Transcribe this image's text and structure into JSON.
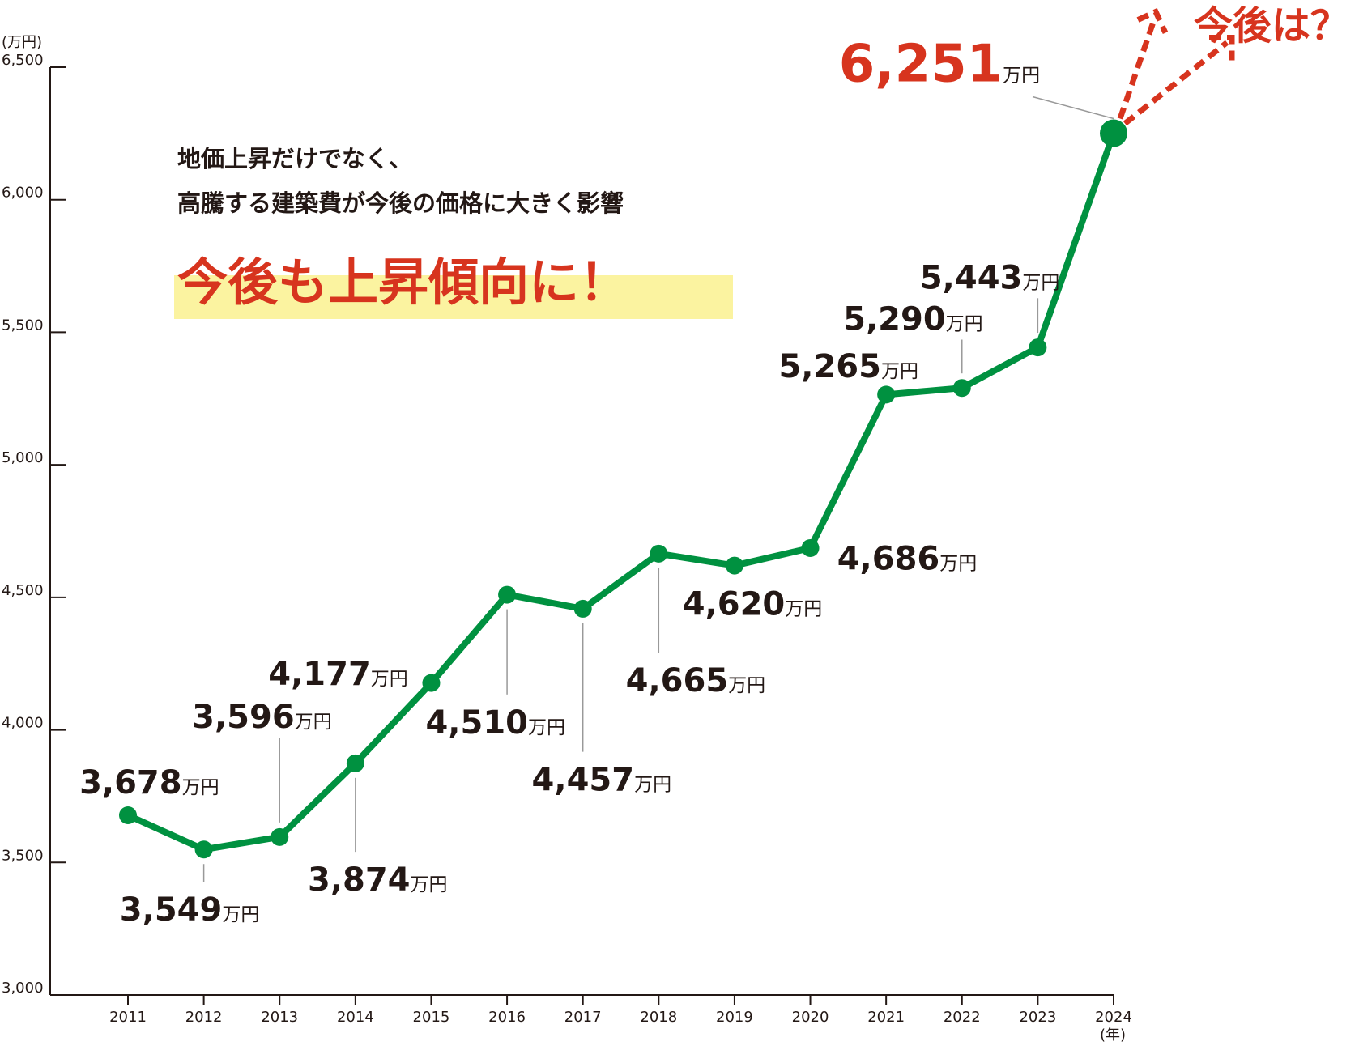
{
  "chart_data": {
    "type": "line",
    "y_label": "(万円)",
    "x_label": "(年)",
    "categories": [
      "2011",
      "2012",
      "2013",
      "2014",
      "2015",
      "2016",
      "2017",
      "2018",
      "2019",
      "2020",
      "2021",
      "2022",
      "2023",
      "2024"
    ],
    "series": [
      {
        "name": "価格",
        "color": "#009140",
        "values": [
          3678,
          3549,
          3596,
          3874,
          4177,
          4510,
          4457,
          4665,
          4620,
          4686,
          5265,
          5290,
          5443,
          6251
        ],
        "value_labels": [
          "3,678",
          "3,549",
          "3,596",
          "3,874",
          "4,177",
          "4,510",
          "4,457",
          "4,665",
          "4,620",
          "4,686",
          "5,265",
          "5,290",
          "5,443",
          "6,251"
        ]
      }
    ],
    "value_unit": "万円",
    "ylim": [
      3000,
      6500
    ],
    "yticks": [
      {
        "value": 3000,
        "label": "3,000"
      },
      {
        "value": 3500,
        "label": "3,500"
      },
      {
        "value": 4000,
        "label": "4,000"
      },
      {
        "value": 4500,
        "label": "4,500"
      },
      {
        "value": 5000,
        "label": "5,000"
      },
      {
        "value": 5500,
        "label": "5,500"
      },
      {
        "value": 6000,
        "label": "6,000"
      },
      {
        "value": 6500,
        "label": "6,500"
      }
    ],
    "annotations": [
      "地価上昇だけでなく、",
      "高騰する建築費が今後の価格に大きく影響",
      "今後も上昇傾向に！",
      "今後は？"
    ],
    "highlight_color": "#fbf3a0",
    "accent_color": "#d7341e"
  }
}
